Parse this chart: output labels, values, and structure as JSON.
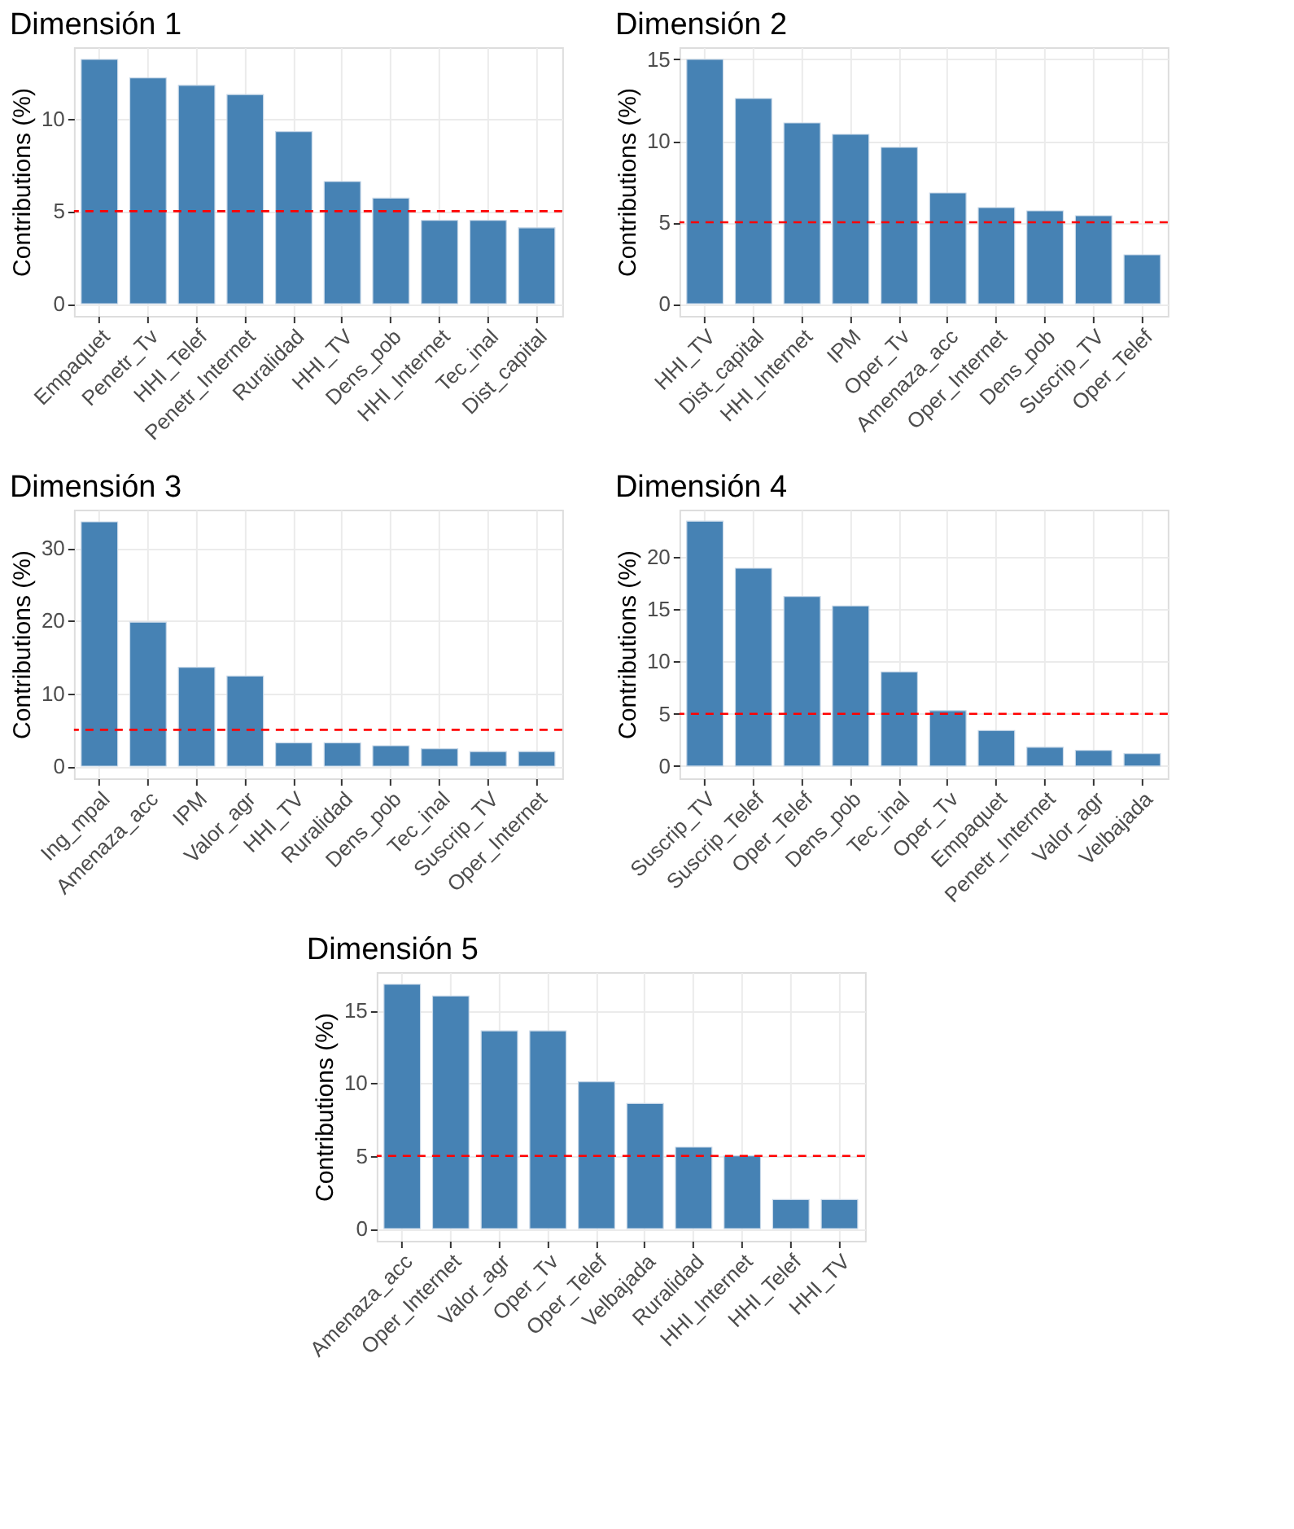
{
  "chart_data": [
    {
      "type": "bar",
      "title": "Dimensión 1",
      "ylabel": "Contributions (%)",
      "categories": [
        "Empaquet",
        "Penetr_Tv",
        "HHI_Telef",
        "Penetr_Internet",
        "Ruralidad",
        "HHI_TV",
        "Dens_pob",
        "HHI_Internet",
        "Tec_inal",
        "Dist_capital"
      ],
      "values": [
        13.2,
        12.2,
        11.8,
        11.3,
        9.3,
        6.6,
        5.7,
        4.5,
        4.5,
        4.1
      ],
      "color": "#4682b4",
      "ylim": [
        -0.66,
        13.86
      ],
      "yticks": [
        0,
        5,
        10
      ],
      "grid": true,
      "ref_lines": [
        {
          "axis": "y",
          "value": 5,
          "color": "#ff0000",
          "line_style": "dashed"
        }
      ]
    },
    {
      "type": "bar",
      "title": "Dimensión 2",
      "ylabel": "Contributions (%)",
      "categories": [
        "HHI_TV",
        "Dist_capital",
        "HHI_Internet",
        "IPM",
        "Oper_Tv",
        "Amenaza_acc",
        "Oper_Internet",
        "Dens_pob",
        "Suscrip_TV",
        "Oper_Telef"
      ],
      "values": [
        15.0,
        12.6,
        11.1,
        10.4,
        9.6,
        6.8,
        5.9,
        5.7,
        5.4,
        3.0
      ],
      "color": "#4682b4",
      "ylim": [
        -0.75,
        15.75
      ],
      "yticks": [
        0,
        5,
        10,
        15
      ],
      "grid": true,
      "ref_lines": [
        {
          "axis": "y",
          "value": 5,
          "color": "#ff0000",
          "line_style": "dashed"
        }
      ]
    },
    {
      "type": "bar",
      "title": "Dimensión 3",
      "ylabel": "Contributions (%)",
      "categories": [
        "Ing_mpal",
        "Amenaza_acc",
        "IPM",
        "Valor_agr",
        "HHI_TV",
        "Ruralidad",
        "Dens_pob",
        "Tec_inal",
        "Suscrip_TV",
        "Oper_Internet"
      ],
      "values": [
        33.6,
        19.8,
        13.6,
        12.4,
        3.2,
        3.2,
        2.8,
        2.4,
        2.0,
        2.0
      ],
      "color": "#4682b4",
      "ylim": [
        -1.68,
        35.28
      ],
      "yticks": [
        0,
        10,
        20,
        30
      ],
      "grid": true,
      "ref_lines": [
        {
          "axis": "y",
          "value": 5,
          "color": "#ff0000",
          "line_style": "dashed"
        }
      ]
    },
    {
      "type": "bar",
      "title": "Dimensión 4",
      "ylabel": "Contributions (%)",
      "categories": [
        "Suscrip_TV",
        "Suscrip_Telef",
        "Oper_Telef",
        "Dens_pob",
        "Tec_inal",
        "Oper_Tv",
        "Empaquet",
        "Penetr_Internet",
        "Valor_agr",
        "Velbajada"
      ],
      "values": [
        23.4,
        18.9,
        16.2,
        15.3,
        9.0,
        5.3,
        3.4,
        1.8,
        1.5,
        1.2
      ],
      "color": "#4682b4",
      "ylim": [
        -1.17,
        24.5
      ],
      "yticks": [
        0,
        5,
        10,
        15,
        20
      ],
      "grid": true,
      "ref_lines": [
        {
          "axis": "y",
          "value": 5,
          "color": "#ff0000",
          "line_style": "dashed"
        }
      ]
    },
    {
      "type": "bar",
      "title": "Dimensión 5",
      "ylabel": "Contributions (%)",
      "categories": [
        "Amenaza_acc",
        "Oper_Internet",
        "Valor_agr",
        "Oper_Tv",
        "Oper_Telef",
        "Velbajada",
        "Ruralidad",
        "HHI_Internet",
        "HHI_Telef",
        "HHI_TV"
      ],
      "values": [
        16.8,
        16.0,
        13.6,
        13.6,
        10.1,
        8.6,
        5.6,
        5.0,
        2.0,
        2.0
      ],
      "color": "#4682b4",
      "ylim": [
        -0.84,
        17.64
      ],
      "yticks": [
        0,
        5,
        10,
        15
      ],
      "grid": true,
      "ref_lines": [
        {
          "axis": "y",
          "value": 5,
          "color": "#ff0000",
          "line_style": "dashed"
        }
      ]
    }
  ]
}
